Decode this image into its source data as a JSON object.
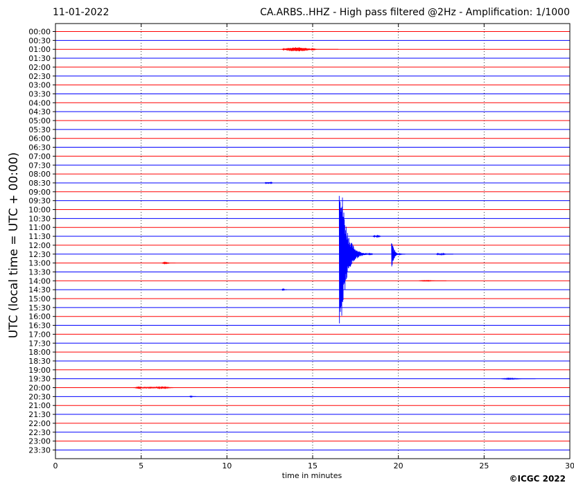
{
  "header": {
    "date": "11-01-2022",
    "title": "CA.ARBS..HHZ - High pass filtered @2Hz - Amplification: 1/1000"
  },
  "footer": {
    "copyright": "©ICGC 2022"
  },
  "chart_data": {
    "type": "line",
    "title": "CA.ARBS..HHZ - High pass filtered @2Hz - Amplification: 1/1000",
    "xlabel": "time in minutes",
    "ylabel": "UTC (local time = UTC + 00:00)",
    "xlim": [
      0,
      30
    ],
    "x_ticks": [
      0,
      5,
      10,
      15,
      20,
      25,
      30
    ],
    "grid": "vertical dotted at 5-minute ticks",
    "trace_colors": [
      "#ff0000",
      "#0000ff"
    ],
    "rows": [
      "00:00",
      "00:30",
      "01:00",
      "01:30",
      "02:00",
      "02:30",
      "03:00",
      "03:30",
      "04:00",
      "04:30",
      "05:00",
      "05:30",
      "06:00",
      "06:30",
      "07:00",
      "07:30",
      "08:00",
      "08:30",
      "09:00",
      "09:30",
      "10:00",
      "10:30",
      "11:00",
      "11:30",
      "12:00",
      "12:30",
      "13:00",
      "13:30",
      "14:00",
      "14:30",
      "15:00",
      "15:30",
      "16:00",
      "16:30",
      "17:00",
      "17:30",
      "18:00",
      "18:30",
      "19:00",
      "19:30",
      "20:00",
      "20:30",
      "21:00",
      "21:30",
      "22:00",
      "22:30",
      "23:00",
      "23:30"
    ],
    "events": [
      {
        "row": "01:00",
        "start": 13.2,
        "end": 16.5,
        "amplitude": 0.35
      },
      {
        "row": "08:30",
        "start": 12.2,
        "end": 13.0,
        "amplitude": 0.15
      },
      {
        "row": "11:30",
        "start": 18.5,
        "end": 19.3,
        "amplitude": 0.12
      },
      {
        "row": "12:30",
        "start": 16.55,
        "end": 18.5,
        "amplitude": 12.0
      },
      {
        "row": "12:30",
        "start": 19.6,
        "end": 20.4,
        "amplitude": 1.8
      },
      {
        "row": "12:30",
        "start": 22.2,
        "end": 23.2,
        "amplitude": 0.12
      },
      {
        "row": "13:00",
        "start": 6.2,
        "end": 7.0,
        "amplitude": 0.08
      },
      {
        "row": "14:00",
        "start": 21.2,
        "end": 22.8,
        "amplitude": 0.05
      },
      {
        "row": "14:30",
        "start": 13.2,
        "end": 13.5,
        "amplitude": 0.1
      },
      {
        "row": "19:30",
        "start": 26.0,
        "end": 28.0,
        "amplitude": 0.06
      },
      {
        "row": "20:00",
        "start": 4.5,
        "end": 8.5,
        "amplitude": 0.14
      },
      {
        "row": "20:30",
        "start": 7.8,
        "end": 8.2,
        "amplitude": 0.06
      }
    ]
  }
}
